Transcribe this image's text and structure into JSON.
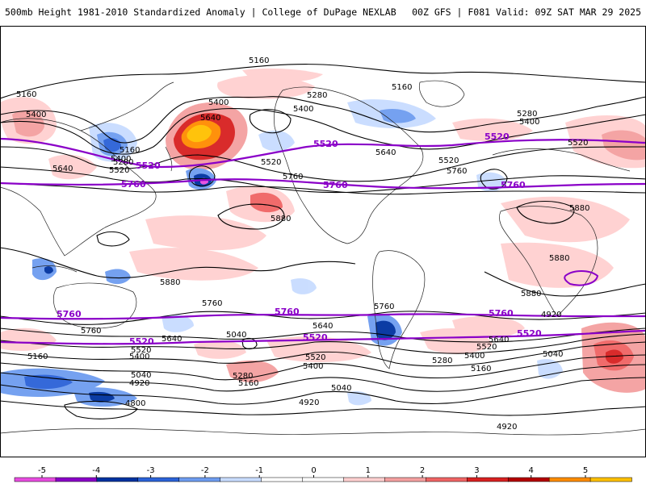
{
  "title": {
    "left": "500mb Height 1981-2010 Standardized Anomaly | College of DuPage NEXLAB",
    "right": "00Z GFS | F081 Valid: 09Z SAT MAR 29 2025"
  },
  "contour_labels": [
    "5160",
    "5160",
    "5160",
    "5400",
    "5400",
    "5400",
    "5640",
    "5280",
    "5280",
    "5520",
    "5160",
    "5400",
    "5640",
    "5520",
    "5760",
    "5880",
    "5520",
    "5640",
    "5760",
    "5280",
    "5400",
    "5520",
    "5880",
    "5880",
    "5880",
    "5880",
    "5760",
    "5760",
    "5640",
    "5520",
    "5400",
    "5160",
    "5040",
    "4920",
    "4800",
    "5280",
    "5160",
    "5040",
    "4920",
    "5640",
    "5520",
    "5400",
    "5280",
    "5160",
    "5040",
    "4920",
    "5760",
    "5640",
    "5520",
    "5400",
    "5040",
    "4920"
  ],
  "purple_labels": [
    "5520",
    "5760",
    "5520",
    "5760",
    "5520",
    "5760",
    "5760",
    "5520",
    "5760",
    "5520",
    "5760",
    "5520"
  ],
  "colorbar": {
    "ticks": [
      "-5",
      "-4",
      "-3",
      "-2",
      "-1",
      "0",
      "1",
      "2",
      "3",
      "4",
      "5"
    ],
    "colors": [
      "#e84ce0",
      "#8a00c8",
      "#0032a0",
      "#2b62d8",
      "#6e9cf0",
      "#c8dcff",
      "#ffffff",
      "#ffffff",
      "#ffd0d0",
      "#f4a0a0",
      "#f06464",
      "#d82020",
      "#b40000",
      "#ff8c00",
      "#ffc000"
    ]
  }
}
